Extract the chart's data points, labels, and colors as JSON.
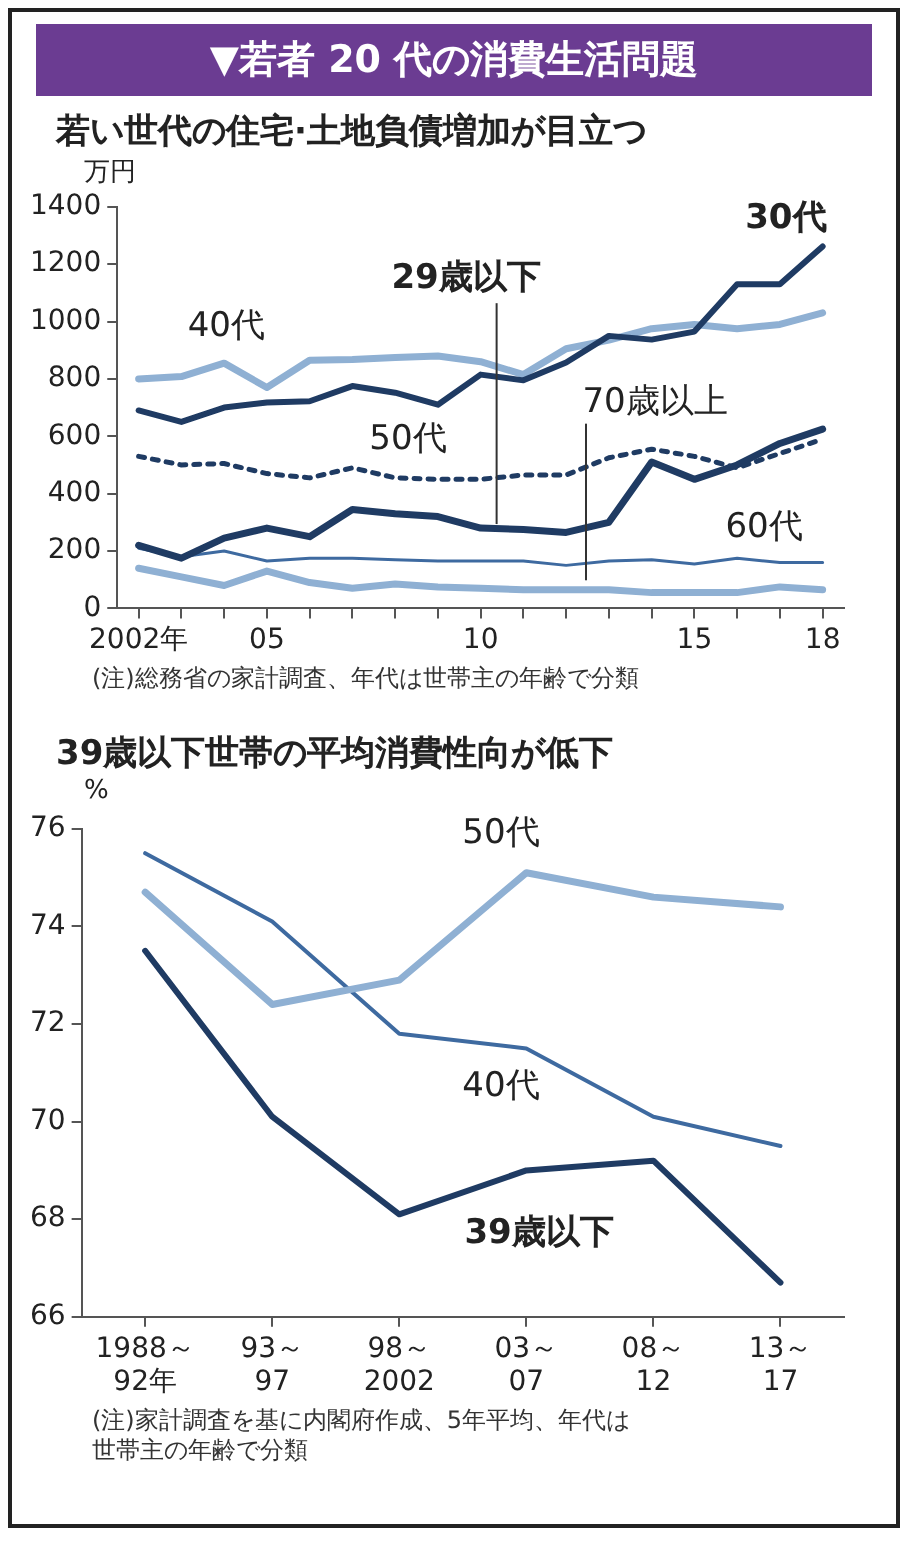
{
  "chart_data": [
    {
      "type": "line",
      "title": "▼若者 20 代の消費生活問題",
      "subtitle": "若い世代の住宅·土地負債増加が目立つ",
      "ylabel": "万円",
      "x": [
        2002,
        2003,
        2004,
        2005,
        2006,
        2007,
        2008,
        2009,
        2010,
        2011,
        2012,
        2013,
        2014,
        2015,
        2016,
        2017,
        2018
      ],
      "xlim": [
        2001.5,
        2018.5
      ],
      "xticks": [
        {
          "value": 2002,
          "label": "2002年"
        },
        {
          "value": 2003,
          "label": null
        },
        {
          "value": 2004,
          "label": null
        },
        {
          "value": 2005,
          "label": "05"
        },
        {
          "value": 2006,
          "label": null
        },
        {
          "value": 2007,
          "label": null
        },
        {
          "value": 2008,
          "label": null
        },
        {
          "value": 2009,
          "label": null
        },
        {
          "value": 2010,
          "label": "10"
        },
        {
          "value": 2011,
          "label": null
        },
        {
          "value": 2012,
          "label": null
        },
        {
          "value": 2013,
          "label": null
        },
        {
          "value": 2014,
          "label": null
        },
        {
          "value": 2015,
          "label": "15"
        },
        {
          "value": 2016,
          "label": null
        },
        {
          "value": 2017,
          "label": null
        },
        {
          "value": 2018,
          "label": "18"
        }
      ],
      "ylim": [
        0,
        1400
      ],
      "yticks": [
        0,
        200,
        400,
        600,
        800,
        1000,
        1200,
        1400
      ],
      "grid": false,
      "legend": false,
      "marker": "none",
      "series": [
        {
          "name": "30代",
          "color": "#1f3b63",
          "values": [
            690,
            650,
            700,
            718,
            722,
            775,
            752,
            710,
            815,
            795,
            857,
            950,
            937,
            965,
            1130,
            1130,
            1262
          ]
        },
        {
          "name": "40代",
          "color": "#8fb0d3",
          "values": [
            800,
            808,
            855,
            770,
            865,
            868,
            875,
            880,
            860,
            815,
            905,
            935,
            975,
            990,
            975,
            990,
            1030
          ]
        },
        {
          "name": "50代",
          "color": "#1f3b63",
          "line_style": "dotted",
          "values": [
            530,
            500,
            505,
            470,
            455,
            490,
            455,
            450,
            450,
            465,
            465,
            525,
            555,
            530,
            490,
            540,
            590
          ]
        },
        {
          "name": "29歳以下",
          "color": "#1f3b63",
          "values": [
            220,
            175,
            245,
            280,
            250,
            345,
            330,
            320,
            280,
            275,
            265,
            300,
            510,
            450,
            500,
            575,
            625
          ]
        },
        {
          "name": "60代",
          "color": "#3e6aa0",
          "values": [
            210,
            180,
            200,
            165,
            175,
            175,
            170,
            165,
            165,
            165,
            150,
            165,
            170,
            155,
            175,
            160,
            160
          ]
        },
        {
          "name": "70歳以上",
          "color": "#8fb0d3",
          "values": [
            140,
            110,
            80,
            130,
            90,
            70,
            85,
            75,
            70,
            65,
            65,
            65,
            55,
            55,
            55,
            75,
            65
          ]
        }
      ],
      "annotations": [
        "(注)総務省の家計調査、年代は世帯主の年齢で分類"
      ]
    },
    {
      "type": "line",
      "title": "39歳以下世帯の平均消費性向が低下",
      "ylabel": "%",
      "categories": [
        "1988～\n92年",
        "93～\n97",
        "98～\n2002",
        "03～\n07",
        "08～\n12",
        "13～\n17"
      ],
      "ylim": [
        66,
        76
      ],
      "yticks": [
        66,
        68,
        70,
        72,
        74,
        76
      ],
      "grid": false,
      "legend": false,
      "marker": "none",
      "series": [
        {
          "name": "50代",
          "color": "#8fb0d3",
          "values": [
            74.7,
            72.4,
            72.9,
            75.1,
            74.6,
            74.4
          ]
        },
        {
          "name": "40代",
          "color": "#3e6aa0",
          "values": [
            75.5,
            74.1,
            71.8,
            71.5,
            70.1,
            69.5
          ]
        },
        {
          "name": "39歳以下",
          "color": "#1f3b63",
          "values": [
            73.5,
            70.1,
            68.1,
            69.0,
            69.2,
            66.7
          ]
        }
      ],
      "annotations": [
        "(注)家計調査を基に内閣府作成、5年平均、年代は世帯主の年齢で分類"
      ]
    }
  ]
}
